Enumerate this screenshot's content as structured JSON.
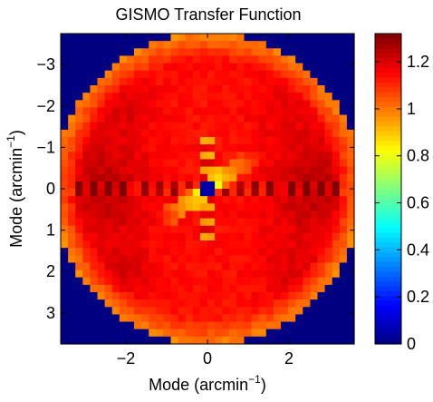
{
  "chart_data": {
    "type": "heatmap",
    "title": "GISMO Transfer Function",
    "xlabel": {
      "text": "Mode (arcmin",
      "sup": "−1",
      "close": ")"
    },
    "ylabel": {
      "text": "Mode (arcmin",
      "sup": "−1",
      "close": ")"
    },
    "x_range": [
      -3.6,
      3.6
    ],
    "y_range": [
      -3.75,
      3.75
    ],
    "y_direction": "down",
    "grid_cells": [
      40,
      42
    ],
    "x_ticks": [
      {
        "value": -2,
        "label": "−2"
      },
      {
        "value": 0,
        "label": "0"
      },
      {
        "value": 2,
        "label": "2"
      }
    ],
    "y_ticks": [
      {
        "value": -3,
        "label": "−3"
      },
      {
        "value": -2,
        "label": "−2"
      },
      {
        "value": -1,
        "label": "−1"
      },
      {
        "value": 0,
        "label": "0"
      },
      {
        "value": 1,
        "label": "1"
      },
      {
        "value": 2,
        "label": "2"
      },
      {
        "value": 3,
        "label": "3"
      }
    ],
    "colorbar": {
      "range": [
        0,
        1.32
      ],
      "ticks": [
        {
          "value": 0,
          "label": "0"
        },
        {
          "value": 0.2,
          "label": "0.2"
        },
        {
          "value": 0.4,
          "label": "0.4"
        },
        {
          "value": 0.6,
          "label": "0.6"
        },
        {
          "value": 0.8,
          "label": "0.8"
        },
        {
          "value": 1,
          "label": "1"
        },
        {
          "value": 1.2,
          "label": "1.2"
        }
      ],
      "colormap": "jet"
    },
    "field": {
      "outside_value": 0,
      "disk_radius": 3.78,
      "base_value": 1.14,
      "blobs": [
        {
          "x": -2.6,
          "y": 0,
          "sx": 0.8,
          "sy": 0.9,
          "amp": 0.1
        },
        {
          "x": 2.6,
          "y": 0,
          "sx": 0.8,
          "sy": 0.9,
          "amp": 0.1
        },
        {
          "x": -2.0,
          "y": -2.0,
          "sx": 0.5,
          "sy": 0.5,
          "amp": 0.05
        },
        {
          "x": 2.0,
          "y": -2.0,
          "sx": 0.5,
          "sy": 0.5,
          "amp": 0.05
        },
        {
          "x": -2.0,
          "y": 2.0,
          "sx": 0.5,
          "sy": 0.5,
          "amp": 0.05
        },
        {
          "x": 2.0,
          "y": 2.0,
          "sx": 0.5,
          "sy": 0.5,
          "amp": 0.05
        }
      ],
      "diagonal_band": {
        "angle_deg": -35,
        "half_width": 0.22,
        "length": 1.5,
        "value": 0.72
      },
      "center": {
        "value": 0.05,
        "radius": 0.15
      },
      "edge_ring": {
        "inner": 3.1,
        "value": 0.98
      }
    }
  }
}
